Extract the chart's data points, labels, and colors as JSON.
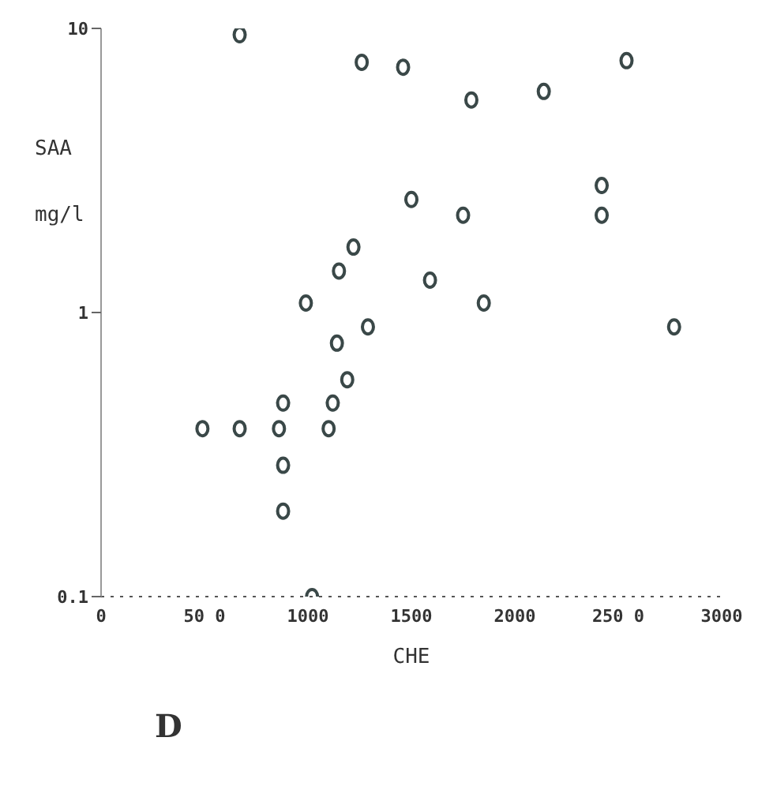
{
  "chart_data": {
    "type": "scatter",
    "xlabel": "CHE",
    "ylabel": "SAA mg/l",
    "annotations": [
      "D"
    ],
    "x": [
      670,
      1260,
      1460,
      1790,
      2140,
      2540,
      1500,
      1750,
      2420,
      2420,
      1220,
      1150,
      1590,
      990,
      1850,
      1290,
      1140,
      2770,
      1190,
      880,
      1120,
      490,
      670,
      860,
      1100,
      880,
      880,
      1020
    ],
    "series": [
      {
        "color": "#3a4848",
        "values": [
          9.5,
          7.6,
          7.3,
          5.6,
          6.0,
          7.7,
          2.5,
          2.2,
          2.8,
          2.2,
          1.7,
          1.4,
          1.3,
          1.08,
          1.08,
          0.89,
          0.78,
          0.89,
          0.58,
          0.48,
          0.48,
          0.39,
          0.39,
          0.39,
          0.39,
          0.29,
          0.2,
          0.1
        ]
      }
    ],
    "xlim": [
      0,
      3000
    ],
    "xticks": [
      0,
      {
        "value": 500,
        "label": "50 0"
      },
      1000,
      1500,
      2000,
      {
        "value": 2500,
        "label": "250 0"
      },
      3000
    ],
    "ylim": [
      0.1,
      10
    ],
    "yticks": [
      0.1,
      1,
      10
    ],
    "log": "y",
    "marker": "circle"
  }
}
